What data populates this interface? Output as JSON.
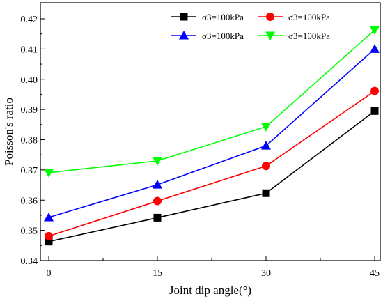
{
  "chart_data": {
    "type": "line",
    "title": "",
    "xlabel": "Joint dip angle(°)",
    "ylabel": "Poisson's ratio",
    "x": [
      0,
      15,
      30,
      45
    ],
    "xlim": [
      0,
      45
    ],
    "ylim": [
      0.34,
      0.42
    ],
    "xticks": [
      0,
      15,
      30,
      45
    ],
    "yticks": [
      0.34,
      0.35,
      0.36,
      0.37,
      0.38,
      0.39,
      0.4,
      0.41,
      0.42
    ],
    "ytick_labels": [
      "0.34",
      "0.35",
      "0.36",
      "0.37",
      "0.38",
      "0.39",
      "0.40",
      "0.41",
      "0.42"
    ],
    "grid": false,
    "legend_position": "top-right",
    "series": [
      {
        "name": "σ3=100kPa",
        "color": "#000000",
        "marker": "square",
        "values": [
          0.3463,
          0.3542,
          0.3623,
          0.3895
        ]
      },
      {
        "name": "σ3=100kPa",
        "color": "#ff0000",
        "marker": "circle",
        "values": [
          0.3481,
          0.3597,
          0.3713,
          0.3961
        ]
      },
      {
        "name": "σ3=100kPa",
        "color": "#0000ff",
        "marker": "triangle-up",
        "values": [
          0.3543,
          0.3651,
          0.378,
          0.41
        ]
      },
      {
        "name": "σ3=100kPa",
        "color": "#00ff00",
        "marker": "triangle-down",
        "values": [
          0.3691,
          0.373,
          0.3843,
          0.4163
        ]
      }
    ]
  }
}
